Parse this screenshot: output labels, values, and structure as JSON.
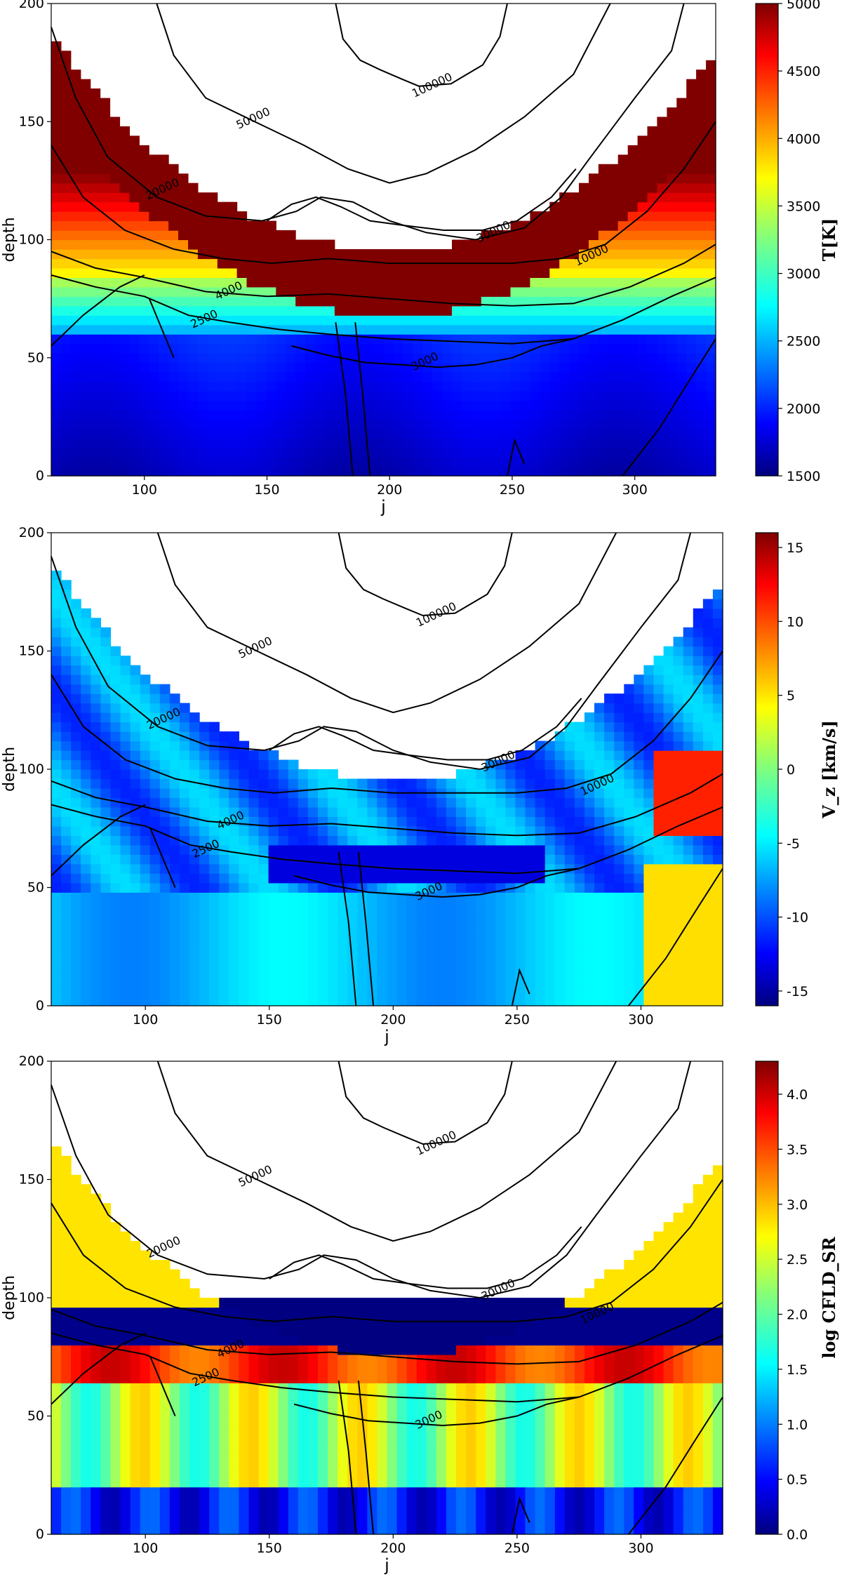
{
  "chart_data": [
    {
      "type": "heatmap",
      "title": "",
      "xlabel": "j",
      "ylabel": "depth",
      "xlim": [
        62,
        333
      ],
      "ylim": [
        0,
        200
      ],
      "xticks": [
        100,
        150,
        200,
        250,
        300
      ],
      "yticks": [
        0,
        50,
        100,
        150,
        200
      ],
      "colorbar": {
        "label": "T[K]",
        "range": [
          1500,
          5000
        ],
        "ticks": [
          1500,
          2000,
          2500,
          3000,
          3500,
          4000,
          4500,
          5000
        ],
        "tick_labels": [
          "1500",
          "2000",
          "2500",
          "3000",
          "3500",
          "4000",
          "4500",
          "5000"
        ],
        "colormap": "jet"
      },
      "contour_labels": [
        {
          "text": "100000",
          "x": 218,
          "y": 164
        },
        {
          "text": "50000",
          "x": 145,
          "y": 150
        },
        {
          "text": "20000",
          "x": 108,
          "y": 120
        },
        {
          "text": "30000",
          "x": 243,
          "y": 102
        },
        {
          "text": "10000",
          "x": 283,
          "y": 92
        },
        {
          "text": "4000",
          "x": 135,
          "y": 77
        },
        {
          "text": "2500",
          "x": 125,
          "y": 65
        },
        {
          "text": "3000",
          "x": 215,
          "y": 47
        }
      ]
    },
    {
      "type": "heatmap",
      "title": "",
      "xlabel": "j",
      "ylabel": "depth",
      "xlim": [
        62,
        333
      ],
      "ylim": [
        0,
        200
      ],
      "xticks": [
        100,
        150,
        200,
        250,
        300
      ],
      "yticks": [
        0,
        50,
        100,
        150,
        200
      ],
      "colorbar": {
        "label": "V_z [km/s]",
        "range": [
          -16,
          16
        ],
        "ticks": [
          -15,
          -10,
          -5,
          0,
          5,
          10,
          15
        ],
        "tick_labels": [
          "-15",
          "-10",
          "-5",
          "0",
          "5",
          "10",
          "15"
        ],
        "colormap": "jet"
      },
      "contour_labels": [
        {
          "text": "100000",
          "x": 218,
          "y": 164
        },
        {
          "text": "50000",
          "x": 145,
          "y": 150
        },
        {
          "text": "20000",
          "x": 108,
          "y": 120
        },
        {
          "text": "30000",
          "x": 243,
          "y": 102
        },
        {
          "text": "10000",
          "x": 283,
          "y": 92
        },
        {
          "text": "4000",
          "x": 135,
          "y": 77
        },
        {
          "text": "2500",
          "x": 125,
          "y": 65
        },
        {
          "text": "3000",
          "x": 215,
          "y": 47
        }
      ]
    },
    {
      "type": "heatmap",
      "title": "",
      "xlabel": "j",
      "ylabel": "depth",
      "xlim": [
        62,
        333
      ],
      "ylim": [
        0,
        200
      ],
      "xticks": [
        100,
        150,
        200,
        250,
        300
      ],
      "yticks": [
        0,
        50,
        100,
        150,
        200
      ],
      "colorbar": {
        "label": "log CFLD_SR",
        "range": [
          0,
          4.3
        ],
        "ticks": [
          0,
          0.5,
          1.0,
          1.5,
          2.0,
          2.5,
          3.0,
          3.5,
          4.0
        ],
        "tick_labels": [
          "0.0",
          "0.5",
          "1.0",
          "1.5",
          "2.0",
          "2.5",
          "3.0",
          "3.5",
          "4.0"
        ],
        "colormap": "jet"
      },
      "contour_labels": [
        {
          "text": "100000",
          "x": 218,
          "y": 164
        },
        {
          "text": "50000",
          "x": 145,
          "y": 150
        },
        {
          "text": "20000",
          "x": 108,
          "y": 120
        },
        {
          "text": "30000",
          "x": 243,
          "y": 102
        },
        {
          "text": "10000",
          "x": 283,
          "y": 92
        },
        {
          "text": "4000",
          "x": 135,
          "y": 77
        },
        {
          "text": "2500",
          "x": 125,
          "y": 65
        },
        {
          "text": "3000",
          "x": 215,
          "y": 47
        }
      ]
    }
  ]
}
